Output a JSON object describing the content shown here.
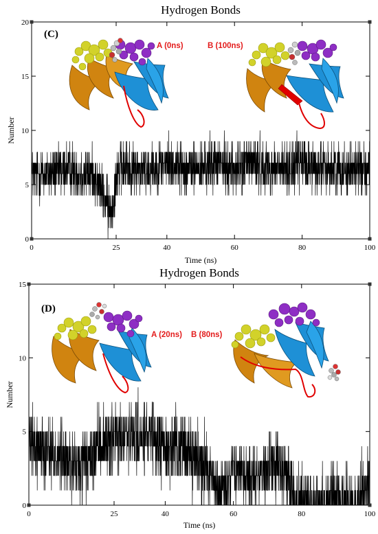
{
  "chart_data": [
    {
      "type": "line",
      "title": "Hydrogen Bonds",
      "panel_label": "(C)",
      "xlabel": "Time (ns)",
      "ylabel": "Number",
      "xlim": [
        0,
        100
      ],
      "ylim": [
        0,
        20
      ],
      "x_ticks": [
        0,
        25,
        40,
        60,
        80,
        100
      ],
      "y_ticks": [
        0,
        5,
        10,
        15,
        20
      ],
      "grid": false,
      "annotations": [
        "A (0ns)",
        "B (100ns)"
      ],
      "series": [
        {
          "color": "#000000",
          "x": [
            0,
            5,
            10,
            15,
            18,
            20,
            21,
            22,
            23,
            24,
            25,
            26,
            30,
            35,
            40,
            45,
            50,
            55,
            60,
            65,
            70,
            75,
            80,
            85,
            90,
            95,
            100
          ],
          "y": [
            6,
            6,
            6.5,
            6,
            6,
            5,
            4,
            3.5,
            2.5,
            3,
            6,
            6.5,
            6.5,
            6.5,
            7,
            6.5,
            6.5,
            7,
            6.5,
            7,
            6.5,
            6.5,
            7,
            6.5,
            6.5,
            6.5,
            6.5
          ]
        }
      ],
      "colors": {
        "ribbon_blue": "#1e90d6",
        "ribbon_orange": "#d08410",
        "loop_red": "#e00000",
        "sticks_yellow": "#d2d22a",
        "sticks_purple": "#8e2ec4"
      }
    },
    {
      "type": "line",
      "title": "Hydrogen Bonds",
      "panel_label": "(D)",
      "xlabel": "Time (ns)",
      "ylabel": "Number",
      "xlim": [
        0,
        100
      ],
      "ylim": [
        0,
        15
      ],
      "x_ticks": [
        0,
        25,
        40,
        60,
        80,
        100
      ],
      "y_ticks": [
        0,
        5,
        10,
        15
      ],
      "grid": false,
      "annotations": [
        "A (20ns)",
        "B (80ns)"
      ],
      "series": [
        {
          "color": "#000000",
          "x": [
            0,
            5,
            10,
            15,
            18,
            20,
            25,
            30,
            35,
            40,
            45,
            50,
            53,
            55,
            58,
            60,
            65,
            70,
            75,
            77,
            78,
            85,
            90,
            95,
            98,
            100
          ],
          "y": [
            4,
            4,
            3,
            2.5,
            3,
            4,
            4.5,
            4.5,
            4.5,
            4,
            4,
            3,
            2.5,
            1,
            1,
            2.5,
            2,
            2.5,
            2.5,
            1.5,
            0,
            0,
            0.5,
            0,
            1,
            1.5
          ]
        }
      ],
      "colors": {
        "ribbon_blue": "#1e90d6",
        "ribbon_orange": "#d08410",
        "loop_red": "#e00000",
        "sticks_yellow": "#d2d22a",
        "sticks_purple": "#8e2ec4"
      }
    }
  ]
}
